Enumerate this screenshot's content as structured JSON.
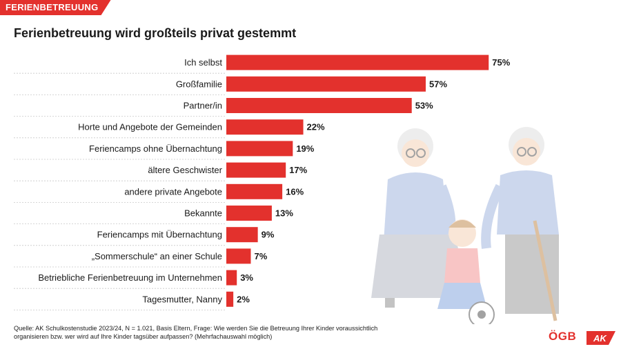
{
  "header": {
    "tag": "FERIENBETREUUNG",
    "title": "Ferienbetreuung wird großteils privat gestemmt"
  },
  "chart_data": {
    "type": "bar",
    "orientation": "horizontal",
    "categories": [
      "Ich selbst",
      "Großfamilie",
      "Partner/in",
      "Horte und Angebote der Gemeinden",
      "Feriencamps ohne Übernachtung",
      "ältere Geschwister",
      "andere private Angebote",
      "Bekannte",
      "Feriencamps mit Übernachtung",
      "„Sommerschule“ an einer Schule",
      "Betriebliche Ferienbetreuung im Unternehmen",
      "Tagesmutter, Nanny"
    ],
    "values": [
      75,
      57,
      53,
      22,
      19,
      17,
      16,
      13,
      9,
      7,
      3,
      2
    ],
    "value_labels": [
      "75%",
      "57%",
      "53%",
      "22%",
      "19%",
      "17%",
      "16%",
      "13%",
      "9%",
      "7%",
      "3%",
      "2%"
    ],
    "value_unit": "%",
    "bar_color": "#e3312d",
    "gridlines": "dotted row separators",
    "xlim": [
      0,
      100
    ]
  },
  "footer": {
    "source": "Quelle: AK Schulkostenstudie 2023/24, N = 1.021, Basis Eltern, Frage: Wie werden Sie die Betreuung Ihrer Kinder voraussichtlich organisieren bzw. wer wird auf Ihre Kinder tagsüber aufpassen? (Mehrfachauswahl möglich)"
  },
  "logos": {
    "oegb": "ÖGB",
    "ak": "AK"
  },
  "colors": {
    "accent": "#e3312d",
    "illustration": "#c7d3e3"
  }
}
